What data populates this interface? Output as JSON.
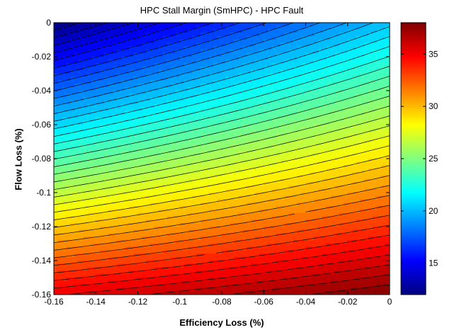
{
  "chart_data": {
    "type": "contour",
    "title": "HPC Stall Margin (SmHPC) - HPC Fault",
    "xlabel": "Efficiency Loss (%)",
    "ylabel": "Flow Loss (%)",
    "xlim": [
      -0.16,
      0
    ],
    "ylim": [
      -0.16,
      0
    ],
    "x_ticks": [
      -0.16,
      -0.14,
      -0.12,
      -0.1,
      -0.08,
      -0.06,
      -0.04,
      -0.02,
      0
    ],
    "x_tick_labels": [
      "-0.16",
      "-0.14",
      "-0.12",
      "-0.1",
      "-0.08",
      "-0.06",
      "-0.04",
      "-0.02",
      "0"
    ],
    "y_ticks": [
      0,
      -0.02,
      -0.04,
      -0.06,
      -0.08,
      -0.1,
      -0.12,
      -0.14,
      -0.16
    ],
    "y_tick_labels": [
      "0",
      "-0.02",
      "-0.04",
      "-0.06",
      "-0.08",
      "-0.1",
      "-0.12",
      "-0.14",
      "-0.16"
    ],
    "colorbar": {
      "colormap": "jet",
      "range": [
        12,
        38
      ],
      "ticks": [
        15,
        20,
        25,
        30,
        35
      ],
      "tick_labels": [
        "15",
        "20",
        "25",
        "30",
        "35"
      ]
    },
    "surface_samples": [
      {
        "x": -0.16,
        "y": 0,
        "value": 12
      },
      {
        "x": 0,
        "y": 0,
        "value": 20.2
      },
      {
        "x": -0.16,
        "y": -0.16,
        "value": 35.3
      },
      {
        "x": 0,
        "y": -0.16,
        "value": 38
      }
    ],
    "contour_levels": 40,
    "grid": false
  }
}
